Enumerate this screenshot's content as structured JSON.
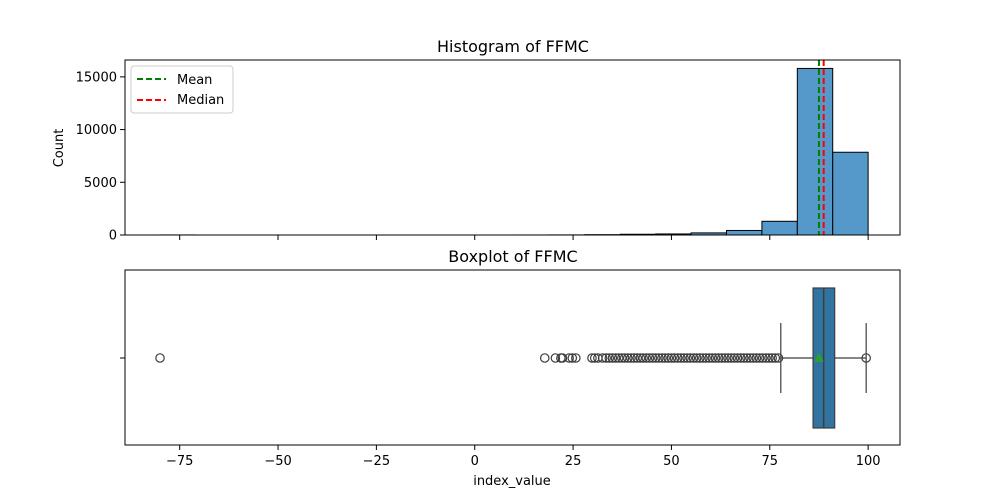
{
  "chart_data": [
    {
      "type": "bar",
      "title": "Histogram of FFMC",
      "xlabel": "",
      "ylabel": "Count",
      "xlim": [
        -88.9,
        108.1
      ],
      "ylim": [
        0,
        16600
      ],
      "yticks": [
        0,
        5000,
        10000,
        15000
      ],
      "bar_color": "#5499c9",
      "bins": [
        {
          "x0": -80.0,
          "x1": -71.0,
          "count": 5
        },
        {
          "x0": -71.0,
          "x1": -62.0,
          "count": 0
        },
        {
          "x0": -62.0,
          "x1": -53.0,
          "count": 0
        },
        {
          "x0": -53.0,
          "x1": -44.0,
          "count": 0
        },
        {
          "x0": -44.0,
          "x1": -35.0,
          "count": 0
        },
        {
          "x0": -35.0,
          "x1": -26.0,
          "count": 0
        },
        {
          "x0": -26.0,
          "x1": -17.0,
          "count": 0
        },
        {
          "x0": -17.0,
          "x1": -8.0,
          "count": 0
        },
        {
          "x0": -8.0,
          "x1": 1.0,
          "count": 0
        },
        {
          "x0": 1.0,
          "x1": 10.0,
          "count": 0
        },
        {
          "x0": 10.0,
          "x1": 19.0,
          "count": 2
        },
        {
          "x0": 19.0,
          "x1": 28.0,
          "count": 8
        },
        {
          "x0": 28.0,
          "x1": 37.0,
          "count": 30
        },
        {
          "x0": 37.0,
          "x1": 46.0,
          "count": 70
        },
        {
          "x0": 46.0,
          "x1": 55.0,
          "count": 100
        },
        {
          "x0": 55.0,
          "x1": 64.0,
          "count": 200
        },
        {
          "x0": 64.0,
          "x1": 73.0,
          "count": 430
        },
        {
          "x0": 73.0,
          "x1": 82.0,
          "count": 1300
        },
        {
          "x0": 82.0,
          "x1": 91.0,
          "count": 15800
        },
        {
          "x0": 91.0,
          "x1": 100.0,
          "count": 7850
        }
      ],
      "mean": 87.5,
      "median": 88.7,
      "legend": {
        "location": "upper-left",
        "entries": [
          {
            "label": "Mean",
            "color": "#008000",
            "style": "dashed"
          },
          {
            "label": "Median",
            "color": "#ff0000",
            "style": "dashed"
          }
        ]
      }
    },
    {
      "type": "boxplot",
      "title": "Boxplot of FFMC",
      "xlabel": "index_value",
      "ylabel": "",
      "xlim": [
        -88.9,
        108.1
      ],
      "xticks": [
        -75,
        -50,
        -25,
        0,
        25,
        50,
        75,
        100
      ],
      "xtick_labels": [
        "−75",
        "−50",
        "−25",
        "0",
        "25",
        "50",
        "75",
        "100"
      ],
      "box_color": "#3274a1",
      "q1": 86.0,
      "median": 88.7,
      "q3": 91.5,
      "whisker_low": 77.8,
      "whisker_high": 99.5,
      "mean": 87.5,
      "outliers": [
        -80.0,
        17.8,
        20.5,
        21.9,
        22.3,
        24.0,
        24.8,
        25.7,
        29.8,
        30.5,
        31.3,
        32.5,
        33.4,
        34.2,
        35.0,
        35.8,
        36.6,
        37.4,
        38.1,
        38.9,
        39.7,
        40.5,
        41.3,
        42.1,
        42.8,
        43.6,
        44.4,
        45.2,
        46.0,
        46.8,
        47.6,
        48.4,
        49.2,
        50.0,
        50.8,
        51.6,
        52.4,
        53.2,
        54.0,
        54.8,
        55.6,
        56.4,
        57.2,
        58.0,
        58.8,
        59.6,
        60.4,
        61.2,
        62.0,
        62.8,
        63.6,
        64.4,
        65.2,
        66.0,
        66.8,
        67.6,
        68.4,
        69.2,
        70.0,
        70.8,
        71.6,
        72.4,
        73.2,
        74.0,
        74.8,
        75.6,
        76.4,
        77.2,
        99.5
      ]
    }
  ]
}
